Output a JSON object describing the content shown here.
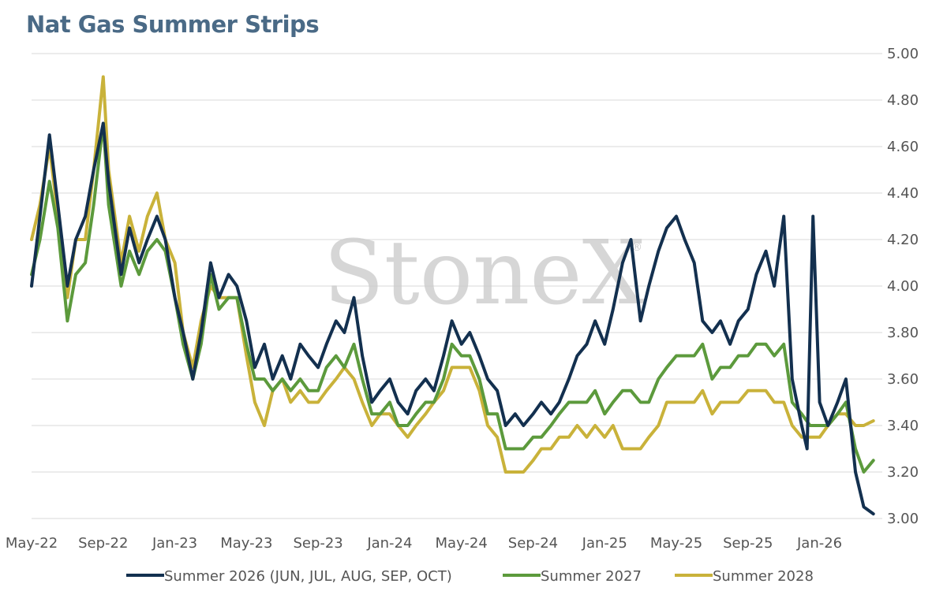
{
  "chart_data": {
    "type": "line",
    "title": "Nat Gas Summer Strips",
    "watermark": "StoneX",
    "y_axis": {
      "position": "right",
      "min": 3.0,
      "max": 5.0,
      "ticks": [
        "3.00",
        "3.20",
        "3.40",
        "3.60",
        "3.80",
        "4.00",
        "4.20",
        "4.40",
        "4.60",
        "4.80",
        "5.00"
      ]
    },
    "x_axis": {
      "ticks": [
        "May-22",
        "Sep-22",
        "Jan-23",
        "May-23",
        "Sep-23",
        "Jan-24",
        "May-24",
        "Sep-24",
        "Jan-25",
        "May-25",
        "Sep-25",
        "Jan-26"
      ],
      "start": "2022-05",
      "end": "2026-04"
    },
    "grid": "horizontal",
    "legend_placement": "bottom",
    "series": [
      {
        "name": "Summer 2026 (JUN, JUL, AUG, SEP, OCT)",
        "color": "#13304f",
        "points": [
          [
            "2022-05",
            4.0
          ],
          [
            "2022-05-15",
            4.3
          ],
          [
            "2022-06",
            4.65
          ],
          [
            "2022-06-15",
            4.35
          ],
          [
            "2022-07",
            4.0
          ],
          [
            "2022-07-15",
            4.2
          ],
          [
            "2022-08",
            4.3
          ],
          [
            "2022-08-15",
            4.5
          ],
          [
            "2022-09",
            4.7
          ],
          [
            "2022-09-10",
            4.45
          ],
          [
            "2022-10",
            4.05
          ],
          [
            "2022-10-15",
            4.25
          ],
          [
            "2022-11",
            4.1
          ],
          [
            "2022-11-15",
            4.2
          ],
          [
            "2022-12",
            4.3
          ],
          [
            "2022-12-15",
            4.2
          ],
          [
            "2023-01",
            3.95
          ],
          [
            "2023-01-15",
            3.8
          ],
          [
            "2023-02",
            3.6
          ],
          [
            "2023-02-15",
            3.8
          ],
          [
            "2023-03",
            4.1
          ],
          [
            "2023-03-15",
            3.95
          ],
          [
            "2023-04",
            4.05
          ],
          [
            "2023-04-15",
            4.0
          ],
          [
            "2023-05",
            3.85
          ],
          [
            "2023-05-15",
            3.65
          ],
          [
            "2023-06",
            3.75
          ],
          [
            "2023-06-15",
            3.6
          ],
          [
            "2023-07",
            3.7
          ],
          [
            "2023-07-15",
            3.6
          ],
          [
            "2023-08",
            3.75
          ],
          [
            "2023-08-15",
            3.7
          ],
          [
            "2023-09",
            3.65
          ],
          [
            "2023-09-15",
            3.75
          ],
          [
            "2023-10",
            3.85
          ],
          [
            "2023-10-15",
            3.8
          ],
          [
            "2023-11",
            3.95
          ],
          [
            "2023-11-15",
            3.7
          ],
          [
            "2023-12",
            3.5
          ],
          [
            "2023-12-15",
            3.55
          ],
          [
            "2024-01",
            3.6
          ],
          [
            "2024-01-15",
            3.5
          ],
          [
            "2024-02",
            3.45
          ],
          [
            "2024-02-15",
            3.55
          ],
          [
            "2024-03",
            3.6
          ],
          [
            "2024-03-15",
            3.55
          ],
          [
            "2024-04",
            3.7
          ],
          [
            "2024-04-15",
            3.85
          ],
          [
            "2024-05",
            3.75
          ],
          [
            "2024-05-15",
            3.8
          ],
          [
            "2024-06",
            3.7
          ],
          [
            "2024-06-15",
            3.6
          ],
          [
            "2024-07",
            3.55
          ],
          [
            "2024-07-15",
            3.4
          ],
          [
            "2024-08",
            3.45
          ],
          [
            "2024-08-15",
            3.4
          ],
          [
            "2024-09",
            3.45
          ],
          [
            "2024-09-15",
            3.5
          ],
          [
            "2024-10",
            3.45
          ],
          [
            "2024-10-15",
            3.5
          ],
          [
            "2024-11",
            3.6
          ],
          [
            "2024-11-15",
            3.7
          ],
          [
            "2024-12",
            3.75
          ],
          [
            "2024-12-15",
            3.85
          ],
          [
            "2025-01",
            3.75
          ],
          [
            "2025-01-15",
            3.9
          ],
          [
            "2025-02",
            4.1
          ],
          [
            "2025-02-15",
            4.2
          ],
          [
            "2025-03",
            3.85
          ],
          [
            "2025-03-15",
            4.0
          ],
          [
            "2025-04",
            4.15
          ],
          [
            "2025-04-15",
            4.25
          ],
          [
            "2025-05",
            4.3
          ],
          [
            "2025-05-15",
            4.2
          ],
          [
            "2025-06",
            4.1
          ],
          [
            "2025-06-15",
            3.85
          ],
          [
            "2025-07",
            3.8
          ],
          [
            "2025-07-15",
            3.85
          ],
          [
            "2025-08",
            3.75
          ],
          [
            "2025-08-15",
            3.85
          ],
          [
            "2025-09",
            3.9
          ],
          [
            "2025-09-15",
            4.05
          ],
          [
            "2025-10",
            4.15
          ],
          [
            "2025-10-15",
            4.0
          ],
          [
            "2025-11",
            4.3
          ],
          [
            "2025-11-15",
            3.6
          ],
          [
            "2025-12",
            3.4
          ],
          [
            "2025-12-10",
            3.3
          ],
          [
            "2025-12-20",
            4.3
          ],
          [
            "2026-01",
            3.5
          ],
          [
            "2026-01-15",
            3.4
          ],
          [
            "2026-02",
            3.5
          ],
          [
            "2026-02-15",
            3.6
          ],
          [
            "2026-03",
            3.2
          ],
          [
            "2026-03-15",
            3.05
          ],
          [
            "2026-04",
            3.02
          ]
        ]
      },
      {
        "name": "Summer 2027",
        "color": "#5c9a3c",
        "points": [
          [
            "2022-05",
            4.05
          ],
          [
            "2022-05-15",
            4.2
          ],
          [
            "2022-06",
            4.45
          ],
          [
            "2022-06-15",
            4.25
          ],
          [
            "2022-07",
            3.85
          ],
          [
            "2022-07-15",
            4.05
          ],
          [
            "2022-08",
            4.1
          ],
          [
            "2022-08-15",
            4.35
          ],
          [
            "2022-09",
            4.7
          ],
          [
            "2022-09-10",
            4.35
          ],
          [
            "2022-10",
            4.0
          ],
          [
            "2022-10-15",
            4.15
          ],
          [
            "2022-11",
            4.05
          ],
          [
            "2022-11-15",
            4.15
          ],
          [
            "2022-12",
            4.2
          ],
          [
            "2022-12-15",
            4.15
          ],
          [
            "2023-01",
            3.95
          ],
          [
            "2023-01-15",
            3.75
          ],
          [
            "2023-02",
            3.6
          ],
          [
            "2023-02-15",
            3.75
          ],
          [
            "2023-03",
            4.05
          ],
          [
            "2023-03-15",
            3.9
          ],
          [
            "2023-04",
            3.95
          ],
          [
            "2023-04-15",
            3.95
          ],
          [
            "2023-05",
            3.75
          ],
          [
            "2023-05-15",
            3.6
          ],
          [
            "2023-06",
            3.6
          ],
          [
            "2023-06-15",
            3.55
          ],
          [
            "2023-07",
            3.6
          ],
          [
            "2023-07-15",
            3.55
          ],
          [
            "2023-08",
            3.6
          ],
          [
            "2023-08-15",
            3.55
          ],
          [
            "2023-09",
            3.55
          ],
          [
            "2023-09-15",
            3.65
          ],
          [
            "2023-10",
            3.7
          ],
          [
            "2023-10-15",
            3.65
          ],
          [
            "2023-11",
            3.75
          ],
          [
            "2023-11-15",
            3.6
          ],
          [
            "2023-12",
            3.45
          ],
          [
            "2023-12-15",
            3.45
          ],
          [
            "2024-01",
            3.5
          ],
          [
            "2024-01-15",
            3.4
          ],
          [
            "2024-02",
            3.4
          ],
          [
            "2024-02-15",
            3.45
          ],
          [
            "2024-03",
            3.5
          ],
          [
            "2024-03-15",
            3.5
          ],
          [
            "2024-04",
            3.6
          ],
          [
            "2024-04-15",
            3.75
          ],
          [
            "2024-05",
            3.7
          ],
          [
            "2024-05-15",
            3.7
          ],
          [
            "2024-06",
            3.6
          ],
          [
            "2024-06-15",
            3.45
          ],
          [
            "2024-07",
            3.45
          ],
          [
            "2024-07-15",
            3.3
          ],
          [
            "2024-08",
            3.3
          ],
          [
            "2024-08-15",
            3.3
          ],
          [
            "2024-09",
            3.35
          ],
          [
            "2024-09-15",
            3.35
          ],
          [
            "2024-10",
            3.4
          ],
          [
            "2024-10-15",
            3.45
          ],
          [
            "2024-11",
            3.5
          ],
          [
            "2024-11-15",
            3.5
          ],
          [
            "2024-12",
            3.5
          ],
          [
            "2024-12-15",
            3.55
          ],
          [
            "2025-01",
            3.45
          ],
          [
            "2025-01-15",
            3.5
          ],
          [
            "2025-02",
            3.55
          ],
          [
            "2025-02-15",
            3.55
          ],
          [
            "2025-03",
            3.5
          ],
          [
            "2025-03-15",
            3.5
          ],
          [
            "2025-04",
            3.6
          ],
          [
            "2025-04-15",
            3.65
          ],
          [
            "2025-05",
            3.7
          ],
          [
            "2025-05-15",
            3.7
          ],
          [
            "2025-06",
            3.7
          ],
          [
            "2025-06-15",
            3.75
          ],
          [
            "2025-07",
            3.6
          ],
          [
            "2025-07-15",
            3.65
          ],
          [
            "2025-08",
            3.65
          ],
          [
            "2025-08-15",
            3.7
          ],
          [
            "2025-09",
            3.7
          ],
          [
            "2025-09-15",
            3.75
          ],
          [
            "2025-10",
            3.75
          ],
          [
            "2025-10-15",
            3.7
          ],
          [
            "2025-11",
            3.75
          ],
          [
            "2025-11-15",
            3.5
          ],
          [
            "2025-12",
            3.45
          ],
          [
            "2025-12-15",
            3.4
          ],
          [
            "2026-01",
            3.4
          ],
          [
            "2026-01-15",
            3.4
          ],
          [
            "2026-02",
            3.45
          ],
          [
            "2026-02-15",
            3.5
          ],
          [
            "2026-03",
            3.3
          ],
          [
            "2026-03-15",
            3.2
          ],
          [
            "2026-04",
            3.25
          ]
        ]
      },
      {
        "name": "Summer 2028",
        "color": "#c9b23a",
        "points": [
          [
            "2022-05",
            4.2
          ],
          [
            "2022-05-15",
            4.35
          ],
          [
            "2022-06",
            4.6
          ],
          [
            "2022-06-15",
            4.3
          ],
          [
            "2022-07",
            3.95
          ],
          [
            "2022-07-15",
            4.2
          ],
          [
            "2022-08",
            4.2
          ],
          [
            "2022-08-15",
            4.5
          ],
          [
            "2022-09",
            4.9
          ],
          [
            "2022-09-10",
            4.5
          ],
          [
            "2022-10",
            4.1
          ],
          [
            "2022-10-15",
            4.3
          ],
          [
            "2022-11",
            4.15
          ],
          [
            "2022-11-15",
            4.3
          ],
          [
            "2022-12",
            4.4
          ],
          [
            "2022-12-15",
            4.2
          ],
          [
            "2023-01",
            4.1
          ],
          [
            "2023-01-15",
            3.8
          ],
          [
            "2023-02",
            3.65
          ],
          [
            "2023-02-15",
            3.85
          ],
          [
            "2023-03",
            4.0
          ],
          [
            "2023-03-15",
            3.95
          ],
          [
            "2023-04",
            3.95
          ],
          [
            "2023-04-15",
            3.95
          ],
          [
            "2023-05",
            3.7
          ],
          [
            "2023-05-15",
            3.5
          ],
          [
            "2023-06",
            3.4
          ],
          [
            "2023-06-15",
            3.55
          ],
          [
            "2023-07",
            3.6
          ],
          [
            "2023-07-15",
            3.5
          ],
          [
            "2023-08",
            3.55
          ],
          [
            "2023-08-15",
            3.5
          ],
          [
            "2023-09",
            3.5
          ],
          [
            "2023-09-15",
            3.55
          ],
          [
            "2023-10",
            3.6
          ],
          [
            "2023-10-15",
            3.65
          ],
          [
            "2023-11",
            3.6
          ],
          [
            "2023-11-15",
            3.5
          ],
          [
            "2023-12",
            3.4
          ],
          [
            "2023-12-15",
            3.45
          ],
          [
            "2024-01",
            3.45
          ],
          [
            "2024-01-15",
            3.4
          ],
          [
            "2024-02",
            3.35
          ],
          [
            "2024-02-15",
            3.4
          ],
          [
            "2024-03",
            3.45
          ],
          [
            "2024-03-15",
            3.5
          ],
          [
            "2024-04",
            3.55
          ],
          [
            "2024-04-15",
            3.65
          ],
          [
            "2024-05",
            3.65
          ],
          [
            "2024-05-15",
            3.65
          ],
          [
            "2024-06",
            3.55
          ],
          [
            "2024-06-15",
            3.4
          ],
          [
            "2024-07",
            3.35
          ],
          [
            "2024-07-15",
            3.2
          ],
          [
            "2024-08",
            3.2
          ],
          [
            "2024-08-15",
            3.2
          ],
          [
            "2024-09",
            3.25
          ],
          [
            "2024-09-15",
            3.3
          ],
          [
            "2024-10",
            3.3
          ],
          [
            "2024-10-15",
            3.35
          ],
          [
            "2024-11",
            3.35
          ],
          [
            "2024-11-15",
            3.4
          ],
          [
            "2024-12",
            3.35
          ],
          [
            "2024-12-15",
            3.4
          ],
          [
            "2025-01",
            3.35
          ],
          [
            "2025-01-15",
            3.4
          ],
          [
            "2025-02",
            3.3
          ],
          [
            "2025-02-15",
            3.3
          ],
          [
            "2025-03",
            3.3
          ],
          [
            "2025-03-15",
            3.35
          ],
          [
            "2025-04",
            3.4
          ],
          [
            "2025-04-15",
            3.5
          ],
          [
            "2025-05",
            3.5
          ],
          [
            "2025-05-15",
            3.5
          ],
          [
            "2025-06",
            3.5
          ],
          [
            "2025-06-15",
            3.55
          ],
          [
            "2025-07",
            3.45
          ],
          [
            "2025-07-15",
            3.5
          ],
          [
            "2025-08",
            3.5
          ],
          [
            "2025-08-15",
            3.5
          ],
          [
            "2025-09",
            3.55
          ],
          [
            "2025-09-15",
            3.55
          ],
          [
            "2025-10",
            3.55
          ],
          [
            "2025-10-15",
            3.5
          ],
          [
            "2025-11",
            3.5
          ],
          [
            "2025-11-15",
            3.4
          ],
          [
            "2025-12",
            3.35
          ],
          [
            "2025-12-15",
            3.35
          ],
          [
            "2026-01",
            3.35
          ],
          [
            "2026-01-15",
            3.4
          ],
          [
            "2026-02",
            3.45
          ],
          [
            "2026-02-15",
            3.45
          ],
          [
            "2026-03",
            3.4
          ],
          [
            "2026-03-15",
            3.4
          ],
          [
            "2026-04",
            3.42
          ]
        ]
      }
    ]
  }
}
